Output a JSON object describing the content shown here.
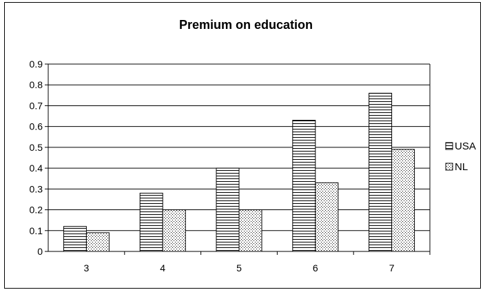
{
  "chart_data": {
    "type": "bar",
    "title": "Premium on education",
    "xlabel": "",
    "ylabel": "",
    "categories": [
      "3",
      "4",
      "5",
      "6",
      "7"
    ],
    "series": [
      {
        "name": "USA",
        "values": [
          0.12,
          0.28,
          0.4,
          0.63,
          0.76
        ],
        "pattern": "horizontal-lines"
      },
      {
        "name": "NL",
        "values": [
          0.09,
          0.2,
          0.2,
          0.33,
          0.49
        ],
        "pattern": "dots"
      }
    ],
    "ylim": [
      0,
      0.9
    ],
    "yticks": [
      "0",
      "0.1",
      "0.2",
      "0.3",
      "0.4",
      "0.5",
      "0.6",
      "0.7",
      "0.8",
      "0.9"
    ],
    "grid": true,
    "legend": "right"
  }
}
